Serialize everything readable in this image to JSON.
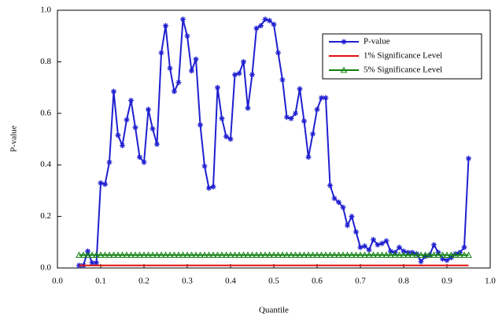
{
  "chart_data": {
    "type": "line",
    "x_label": "Quantile",
    "y_label": "P-value",
    "x": [
      0.05,
      0.06,
      0.07,
      0.08,
      0.09,
      0.1,
      0.11,
      0.12,
      0.13,
      0.14,
      0.15,
      0.16,
      0.17,
      0.18,
      0.19,
      0.2,
      0.21,
      0.22,
      0.23,
      0.24,
      0.25,
      0.26,
      0.27,
      0.28,
      0.29,
      0.3,
      0.31,
      0.32,
      0.33,
      0.34,
      0.35,
      0.36,
      0.37,
      0.38,
      0.39,
      0.4,
      0.41,
      0.42,
      0.43,
      0.44,
      0.45,
      0.46,
      0.47,
      0.48,
      0.49,
      0.5,
      0.51,
      0.52,
      0.53,
      0.54,
      0.55,
      0.56,
      0.57,
      0.58,
      0.59,
      0.6,
      0.61,
      0.62,
      0.63,
      0.64,
      0.65,
      0.66,
      0.67,
      0.68,
      0.69,
      0.7,
      0.71,
      0.72,
      0.73,
      0.74,
      0.75,
      0.76,
      0.77,
      0.78,
      0.79,
      0.8,
      0.81,
      0.82,
      0.83,
      0.84,
      0.85,
      0.86,
      0.87,
      0.88,
      0.89,
      0.9,
      0.91,
      0.92,
      0.93,
      0.94,
      0.95
    ],
    "series": [
      {
        "name": "P-value",
        "color": "#1f1fd0",
        "marker": "asterisk",
        "values": [
          0.01,
          0.01,
          0.065,
          0.02,
          0.02,
          0.33,
          0.325,
          0.41,
          0.685,
          0.515,
          0.475,
          0.575,
          0.65,
          0.545,
          0.43,
          0.41,
          0.615,
          0.54,
          0.48,
          0.835,
          0.94,
          0.775,
          0.685,
          0.72,
          0.965,
          0.9,
          0.765,
          0.81,
          0.555,
          0.395,
          0.31,
          0.315,
          0.7,
          0.58,
          0.51,
          0.5,
          0.75,
          0.755,
          0.8,
          0.62,
          0.75,
          0.93,
          0.94,
          0.965,
          0.96,
          0.945,
          0.835,
          0.73,
          0.585,
          0.58,
          0.6,
          0.695,
          0.57,
          0.43,
          0.52,
          0.615,
          0.66,
          0.66,
          0.32,
          0.27,
          0.255,
          0.235,
          0.165,
          0.2,
          0.14,
          0.08,
          0.085,
          0.07,
          0.11,
          0.09,
          0.095,
          0.105,
          0.065,
          0.06,
          0.08,
          0.065,
          0.06,
          0.06,
          0.055,
          0.025,
          0.045,
          0.05,
          0.09,
          0.06,
          0.035,
          0.03,
          0.04,
          0.055,
          0.06,
          0.08,
          0.425
        ]
      },
      {
        "name": "1% Significance Level",
        "color": "#e01010",
        "marker": "none",
        "values": [
          0.01,
          0.01,
          0.01,
          0.01,
          0.01,
          0.01,
          0.01,
          0.01,
          0.01,
          0.01,
          0.01,
          0.01,
          0.01,
          0.01,
          0.01,
          0.01,
          0.01,
          0.01,
          0.01,
          0.01,
          0.01,
          0.01,
          0.01,
          0.01,
          0.01,
          0.01,
          0.01,
          0.01,
          0.01,
          0.01,
          0.01,
          0.01,
          0.01,
          0.01,
          0.01,
          0.01,
          0.01,
          0.01,
          0.01,
          0.01,
          0.01,
          0.01,
          0.01,
          0.01,
          0.01,
          0.01,
          0.01,
          0.01,
          0.01,
          0.01,
          0.01,
          0.01,
          0.01,
          0.01,
          0.01,
          0.01,
          0.01,
          0.01,
          0.01,
          0.01,
          0.01,
          0.01,
          0.01,
          0.01,
          0.01,
          0.01,
          0.01,
          0.01,
          0.01,
          0.01,
          0.01,
          0.01,
          0.01,
          0.01,
          0.01,
          0.01,
          0.01,
          0.01,
          0.01,
          0.01,
          0.01,
          0.01,
          0.01,
          0.01,
          0.01,
          0.01,
          0.01,
          0.01,
          0.01,
          0.01,
          0.01
        ]
      },
      {
        "name": "5% Significance Level",
        "color": "#108010",
        "marker": "triangle",
        "values": [
          0.05,
          0.05,
          0.05,
          0.05,
          0.05,
          0.05,
          0.05,
          0.05,
          0.05,
          0.05,
          0.05,
          0.05,
          0.05,
          0.05,
          0.05,
          0.05,
          0.05,
          0.05,
          0.05,
          0.05,
          0.05,
          0.05,
          0.05,
          0.05,
          0.05,
          0.05,
          0.05,
          0.05,
          0.05,
          0.05,
          0.05,
          0.05,
          0.05,
          0.05,
          0.05,
          0.05,
          0.05,
          0.05,
          0.05,
          0.05,
          0.05,
          0.05,
          0.05,
          0.05,
          0.05,
          0.05,
          0.05,
          0.05,
          0.05,
          0.05,
          0.05,
          0.05,
          0.05,
          0.05,
          0.05,
          0.05,
          0.05,
          0.05,
          0.05,
          0.05,
          0.05,
          0.05,
          0.05,
          0.05,
          0.05,
          0.05,
          0.05,
          0.05,
          0.05,
          0.05,
          0.05,
          0.05,
          0.05,
          0.05,
          0.05,
          0.05,
          0.05,
          0.05,
          0.05,
          0.05,
          0.05,
          0.05,
          0.05,
          0.05,
          0.05,
          0.05,
          0.05,
          0.05,
          0.05,
          0.05,
          0.05
        ]
      }
    ],
    "xlim": [
      0,
      1
    ],
    "xticks": [
      {
        "value": 0,
        "label": "0.0"
      },
      0.1,
      0.2,
      0.3,
      0.4,
      0.5,
      0.6,
      0.7,
      0.8,
      0.9,
      {
        "value": 1,
        "label": "1.0"
      }
    ],
    "ylim": [
      0,
      1
    ],
    "yticks": [
      {
        "value": 0,
        "label": "0.0"
      },
      0.2,
      0.4,
      0.6,
      0.8,
      {
        "value": 1,
        "label": "1.0"
      }
    ],
    "grid": false,
    "legend": "upper right"
  }
}
